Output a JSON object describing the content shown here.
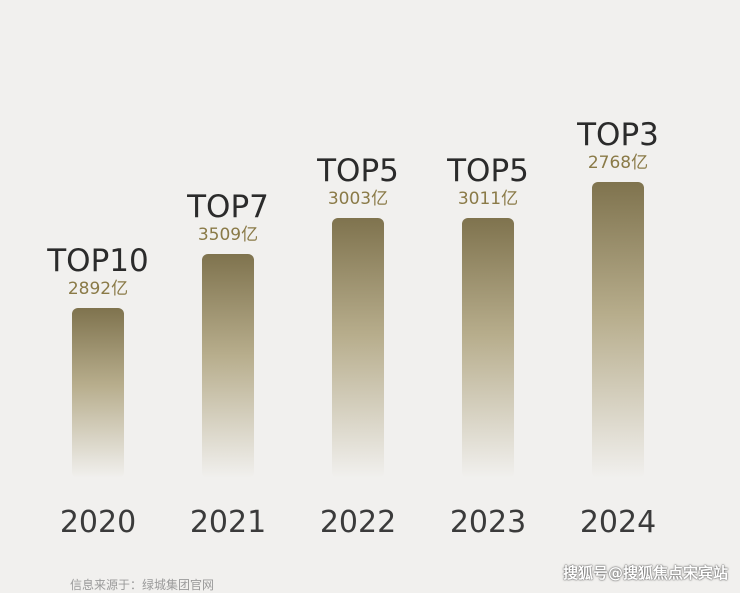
{
  "chart_data": {
    "type": "bar",
    "categories": [
      "2020",
      "2021",
      "2022",
      "2023",
      "2024"
    ],
    "rank_labels": [
      "TOP10",
      "TOP7",
      "TOP5",
      "TOP5",
      "TOP3"
    ],
    "amount_labels": [
      "2892亿",
      "3509亿",
      "3003亿",
      "3011亿",
      "2768亿"
    ],
    "values": [
      2892,
      3509,
      3003,
      3011,
      2768
    ],
    "rank_values": [
      10,
      7,
      5,
      5,
      3
    ],
    "title": "",
    "xlabel": "",
    "ylabel": "",
    "bar_gradient": [
      "#7f734e",
      "#f1f0ee"
    ],
    "grid": false,
    "legend": "none"
  },
  "footer": {
    "source": "信息来源于：绿城集团官网",
    "watermark": "搜狐号@搜狐焦点宋宾站"
  }
}
